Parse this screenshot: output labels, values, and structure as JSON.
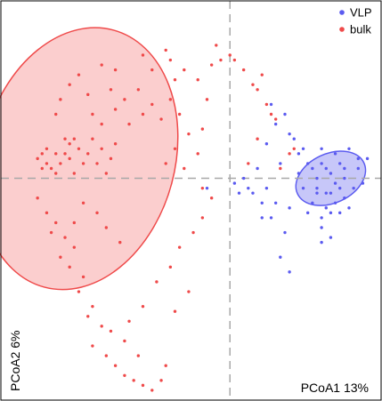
{
  "chart_data": {
    "type": "scatter",
    "xlabel": "PCoA1 13%",
    "ylabel": "PCoA2 6%",
    "grid": false,
    "legend_position": "top-right",
    "reference_lines": {
      "x": 0,
      "y": 0
    },
    "xlim": [
      -0.5,
      0.33
    ],
    "ylim": [
      -0.45,
      0.36
    ],
    "series": [
      {
        "name": "VLP",
        "color": "#5b5bf0",
        "ellipse": {
          "center": [
            0.22,
            0
          ],
          "radius_x": 0.08,
          "radius_y": 0.05,
          "angle_deg": -25
        },
        "points": [
          [
            0.09,
            0.15
          ],
          [
            0.1,
            0.11
          ],
          [
            0.08,
            0.07
          ],
          [
            0.11,
            0.03
          ],
          [
            0.06,
            0.02
          ],
          [
            0.04,
            -0.02
          ],
          [
            0.02,
            -0.03
          ],
          [
            0.05,
            -0.03
          ],
          [
            0.08,
            -0.02
          ],
          [
            0.07,
            -0.05
          ],
          [
            0.1,
            -0.05
          ],
          [
            0.09,
            -0.08
          ],
          [
            0.13,
            -0.06
          ],
          [
            0.12,
            -0.11
          ],
          [
            0.11,
            -0.16
          ],
          [
            0.13,
            -0.19
          ],
          [
            0.07,
            -0.08
          ],
          [
            -0.05,
            -0.02
          ],
          [
            0.01,
            -0.01
          ],
          [
            0.03,
            0
          ],
          [
            0.15,
            0.05
          ],
          [
            0.14,
            0.08
          ],
          [
            0.12,
            0.13
          ],
          [
            0.13,
            0.09
          ],
          [
            0.16,
            0.06
          ],
          [
            0.2,
            0.06
          ],
          [
            0.23,
            0.05
          ],
          [
            0.17,
            0.03
          ],
          [
            0.2,
            0.03
          ],
          [
            0.24,
            0.03
          ],
          [
            0.28,
            0.04
          ],
          [
            0.3,
            0.04
          ],
          [
            0.15,
            0.01
          ],
          [
            0.19,
            0
          ],
          [
            0.22,
            0.01
          ],
          [
            0.25,
            0
          ],
          [
            0.28,
            0.02
          ],
          [
            0.29,
            -0.01
          ],
          [
            0.16,
            -0.02
          ],
          [
            0.19,
            -0.02
          ],
          [
            0.21,
            -0.03
          ],
          [
            0.24,
            -0.02
          ],
          [
            0.27,
            -0.02
          ],
          [
            0.18,
            -0.05
          ],
          [
            0.21,
            -0.06
          ],
          [
            0.23,
            -0.05
          ],
          [
            0.25,
            -0.04
          ],
          [
            0.2,
            -0.08
          ],
          [
            0.22,
            -0.07
          ],
          [
            0.24,
            -0.07
          ],
          [
            0.19,
            -0.03
          ],
          [
            0.22,
            -0.03
          ],
          [
            0.26,
            -0.06
          ],
          [
            0.17,
            -0.07
          ],
          [
            0.21,
            0.02
          ],
          [
            0.23,
            -0.01
          ],
          [
            0.26,
            0.06
          ],
          [
            0.18,
            0.02
          ],
          [
            0.25,
            0.02
          ],
          [
            0.2,
            -0.1
          ],
          [
            0.22,
            -0.12
          ],
          [
            0.2,
            -0.13
          ]
        ]
      },
      {
        "name": "bulk",
        "color": "#ef4a4a",
        "ellipse": {
          "center": [
            -0.33,
            0.04
          ],
          "radius_x": 0.21,
          "radius_y": 0.27,
          "angle_deg": 15
        },
        "points": [
          [
            -0.42,
            0.04
          ],
          [
            -0.41,
            0.02
          ],
          [
            -0.4,
            0.03
          ],
          [
            -0.41,
            0.05
          ],
          [
            -0.4,
            0.06
          ],
          [
            -0.38,
            0.05
          ],
          [
            -0.39,
            0.02
          ],
          [
            -0.38,
            0.01
          ],
          [
            -0.37,
            0.03
          ],
          [
            -0.36,
            0.05
          ],
          [
            -0.35,
            0.07
          ],
          [
            -0.34,
            0.08
          ],
          [
            -0.36,
            0.08
          ],
          [
            -0.35,
            0.04
          ],
          [
            -0.33,
            0.06
          ],
          [
            -0.32,
            0.03
          ],
          [
            -0.34,
            0.01
          ],
          [
            -0.31,
            0.05
          ],
          [
            -0.3,
            0.08
          ],
          [
            -0.29,
            0.03
          ],
          [
            -0.28,
            0.06
          ],
          [
            -0.26,
            0.04
          ],
          [
            -0.27,
            0.01
          ],
          [
            -0.25,
            0.07
          ],
          [
            -0.38,
            0.13
          ],
          [
            -0.37,
            0.16
          ],
          [
            -0.35,
            0.19
          ],
          [
            -0.33,
            0.21
          ],
          [
            -0.31,
            0.17
          ],
          [
            -0.3,
            0.13
          ],
          [
            -0.28,
            0.11
          ],
          [
            -0.26,
            0.18
          ],
          [
            -0.25,
            0.14
          ],
          [
            -0.23,
            0.16
          ],
          [
            -0.22,
            0.11
          ],
          [
            -0.2,
            0.18
          ],
          [
            -0.19,
            0.13
          ],
          [
            -0.17,
            0.15
          ],
          [
            -0.15,
            0.12
          ],
          [
            -0.13,
            0.16
          ],
          [
            -0.12,
            0.2
          ],
          [
            -0.1,
            0.22
          ],
          [
            -0.11,
            0.13
          ],
          [
            -0.09,
            0.09
          ],
          [
            -0.12,
            0.06
          ],
          [
            -0.14,
            0.03
          ],
          [
            -0.1,
            0.02
          ],
          [
            -0.07,
            0.05
          ],
          [
            -0.06,
            0.1
          ],
          [
            -0.05,
            0.16
          ],
          [
            -0.06,
            -0.02
          ],
          [
            -0.04,
            0.23
          ],
          [
            -0.03,
            0.27
          ],
          [
            -0.02,
            0.24
          ],
          [
            -0.14,
            0.26
          ],
          [
            -0.13,
            0.24
          ],
          [
            -0.07,
            0.2
          ],
          [
            -0.17,
            0.22
          ],
          [
            -0.19,
            0.25
          ],
          [
            -0.25,
            0.22
          ],
          [
            -0.28,
            0.23
          ],
          [
            -0.42,
            -0.04
          ],
          [
            -0.4,
            -0.07
          ],
          [
            -0.38,
            -0.09
          ],
          [
            -0.39,
            -0.11
          ],
          [
            -0.36,
            -0.12
          ],
          [
            -0.34,
            -0.14
          ],
          [
            -0.37,
            -0.16
          ],
          [
            -0.35,
            -0.18
          ],
          [
            -0.32,
            -0.2
          ],
          [
            -0.33,
            -0.23
          ],
          [
            -0.3,
            -0.26
          ],
          [
            -0.31,
            -0.28
          ],
          [
            -0.28,
            -0.3
          ],
          [
            -0.3,
            -0.34
          ],
          [
            -0.27,
            -0.36
          ],
          [
            -0.25,
            -0.38
          ],
          [
            -0.23,
            -0.4
          ],
          [
            -0.21,
            -0.41
          ],
          [
            -0.19,
            -0.42
          ],
          [
            -0.17,
            -0.43
          ],
          [
            -0.15,
            -0.41
          ],
          [
            -0.14,
            -0.38
          ],
          [
            -0.2,
            -0.36
          ],
          [
            -0.23,
            -0.33
          ],
          [
            -0.26,
            -0.31
          ],
          [
            -0.22,
            -0.29
          ],
          [
            -0.19,
            -0.26
          ],
          [
            -0.16,
            -0.21
          ],
          [
            -0.13,
            -0.18
          ],
          [
            -0.11,
            -0.14
          ],
          [
            -0.08,
            -0.11
          ],
          [
            -0.06,
            -0.08
          ],
          [
            -0.04,
            -0.04
          ],
          [
            -0.09,
            -0.23
          ],
          [
            -0.12,
            -0.27
          ],
          [
            -0.24,
            -0.13
          ],
          [
            -0.27,
            -0.1
          ],
          [
            -0.29,
            -0.07
          ],
          [
            -0.32,
            -0.05
          ],
          [
            -0.34,
            -0.09
          ],
          [
            0.0,
            0.25
          ],
          [
            0.01,
            0.24
          ],
          [
            0.03,
            0.22
          ],
          [
            0.05,
            0.19
          ],
          [
            0.06,
            0.18
          ],
          [
            0.07,
            0.21
          ],
          [
            0.08,
            0.15
          ],
          [
            0.09,
            0.13
          ],
          [
            0.1,
            0.12
          ],
          [
            0.06,
            0.08
          ],
          [
            0.04,
            0.03
          ],
          [
            0.13,
            0.05
          ],
          [
            0.14,
            0.06
          ],
          [
            0.11,
            0.02
          ]
        ]
      }
    ]
  }
}
